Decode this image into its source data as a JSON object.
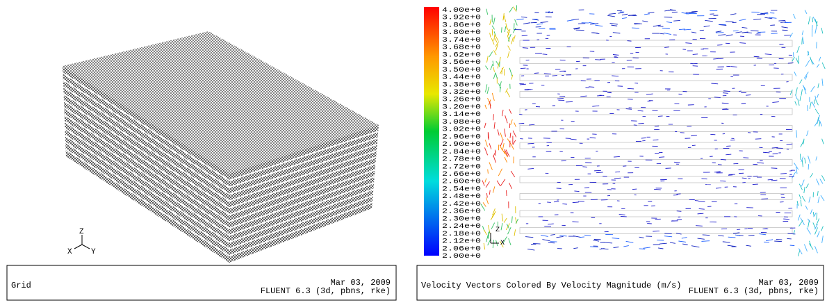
{
  "left_panel": {
    "axes": {
      "z": "Z",
      "x": "X",
      "y": "Y"
    },
    "footer": {
      "title": "Grid",
      "date": "Mar 03, 2009",
      "version": "FLUENT 6.3 (3d, pbns, rke)"
    }
  },
  "right_panel": {
    "colorbar": {
      "labels": [
        "4.00e+0",
        "3.92e+0",
        "3.86e+0",
        "3.80e+0",
        "3.74e+0",
        "3.68e+0",
        "3.62e+0",
        "3.56e+0",
        "3.50e+0",
        "3.44e+0",
        "3.38e+0",
        "3.32e+0",
        "3.26e+0",
        "3.20e+0",
        "3.14e+0",
        "3.08e+0",
        "3.02e+0",
        "2.96e+0",
        "2.90e+0",
        "2.84e+0",
        "2.78e+0",
        "2.72e+0",
        "2.66e+0",
        "2.60e+0",
        "2.54e+0",
        "2.48e+0",
        "2.42e+0",
        "2.36e+0",
        "2.30e+0",
        "2.24e+0",
        "2.18e+0",
        "2.12e+0",
        "2.06e+0",
        "2.00e+0"
      ]
    },
    "axes": {
      "z": "Z",
      "x": "X"
    },
    "footer": {
      "title": "Velocity Vectors Colored By Velocity Magnitude (m/s)",
      "date": "Mar 03, 2009",
      "version": "FLUENT 6.3 (3d, pbns, rke)"
    }
  }
}
